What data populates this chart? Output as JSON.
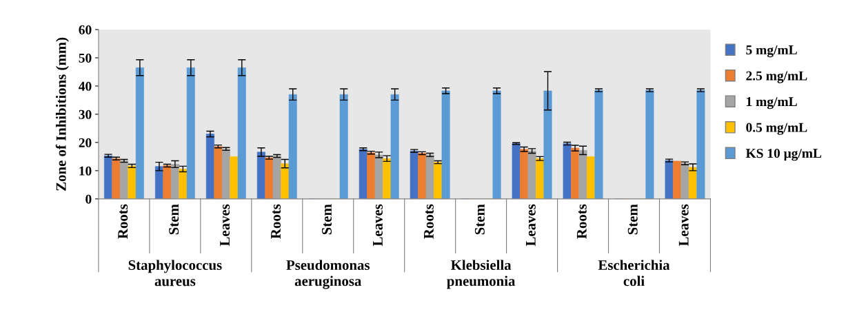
{
  "chart_data": {
    "type": "bar",
    "ylabel": "Zone of Inhibitions (mm)",
    "categories": [
      "Roots",
      "Stem",
      "Leaves",
      "Roots",
      "Stem",
      "Leaves",
      "Roots",
      "Stem",
      "Leaves",
      "Roots",
      "Stem",
      "Leaves"
    ],
    "annotations": [
      "Staphylococcus aureus",
      "Pseudomonas aeruginosa",
      "Klebsiella pneumonia",
      "Escherichia coli"
    ],
    "series": [
      {
        "name": "5 mg/mL",
        "color": "#4472c4",
        "values": [
          15.3,
          11.5,
          23,
          16.6,
          0,
          17.6,
          17,
          0,
          19.6,
          19.6,
          0,
          13.6
        ],
        "errors": [
          0.5,
          1.5,
          1,
          1.5,
          null,
          0.5,
          0.5,
          null,
          0.3,
          0.5,
          null,
          0.5
        ]
      },
      {
        "name": "2.5 mg/mL",
        "color": "#ed7d31",
        "values": [
          14.3,
          11.8,
          18.6,
          14.6,
          0,
          16.4,
          16.2,
          0,
          17.6,
          18,
          0,
          13.4
        ],
        "errors": [
          0.5,
          0.5,
          0.5,
          0.5,
          null,
          0.5,
          0.5,
          null,
          0.8,
          1,
          null,
          null
        ]
      },
      {
        "name": "1 mg/mL",
        "color": "#a5a5a5",
        "values": [
          13.5,
          12.3,
          17.7,
          15.2,
          0,
          15.6,
          15.6,
          0,
          17,
          17.2,
          0,
          12.6
        ],
        "errors": [
          0.5,
          1.2,
          0.5,
          0.5,
          null,
          1,
          0.6,
          null,
          0.8,
          1.5,
          null,
          0.5
        ]
      },
      {
        "name": "0.5 mg/mL",
        "color": "#ffc000",
        "values": [
          11.7,
          10.6,
          15,
          12.5,
          0,
          14.3,
          13,
          0,
          14.3,
          15,
          0,
          11.2
        ],
        "errors": [
          0.6,
          1,
          null,
          1.5,
          null,
          1,
          0.5,
          null,
          0.7,
          null,
          null,
          1.2
        ]
      },
      {
        "name": "KS 10 μg/mL",
        "color": "#5b9bd5",
        "values": [
          46.5,
          46.5,
          46.5,
          37,
          37,
          37,
          38.3,
          38.3,
          38.3,
          38.5,
          38.5,
          38.5
        ],
        "errors": [
          2.8,
          2.8,
          2.8,
          2,
          2,
          2,
          1,
          1,
          6.8,
          0.5,
          0.5,
          0.5
        ]
      }
    ],
    "ylim": [
      0,
      60
    ],
    "yticks": [
      0,
      10,
      20,
      30,
      40,
      50,
      60
    ],
    "grid": false,
    "legend": "right"
  }
}
